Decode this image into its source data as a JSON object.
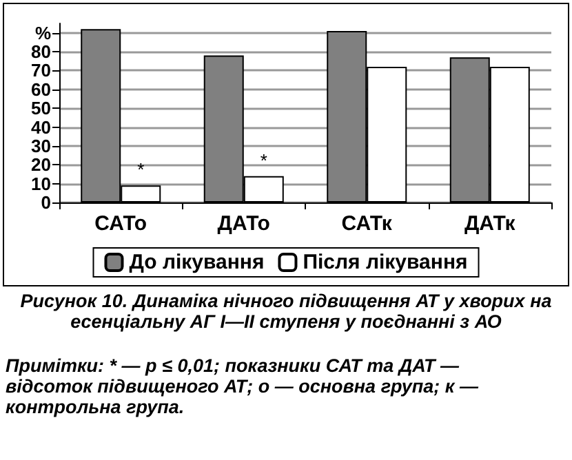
{
  "chart_data": {
    "type": "bar",
    "title": "Рисунок 10. Динаміка нічного підвищення АТ у хворих на есенціальну АГ I—II ступеня у поєднанні з АО",
    "categories": [
      "САТо",
      "ДАТо",
      "САТк",
      "ДАТк"
    ],
    "series": [
      {
        "name": "До лікування",
        "color": "#808080",
        "values": [
          92,
          78,
          91,
          77
        ]
      },
      {
        "name": "Після лікування",
        "color": "#ffffff",
        "values": [
          9,
          14,
          72,
          72
        ]
      }
    ],
    "ylim": [
      0,
      95
    ],
    "yticks": [
      0,
      10,
      20,
      30,
      40,
      50,
      60,
      70,
      80,
      {
        "value": 90,
        "label": "%"
      }
    ],
    "grid": "y",
    "legend": "bottom",
    "annotations": [
      {
        "text": "*",
        "x": "САТо",
        "y": 9
      },
      {
        "text": "*",
        "x": "ДАТо",
        "y": 14
      },
      "Примітки: * — p ≤ 0,01; показники САТ та ДАТ — відсоток підвищеного АТ; о — основна група; к — контрольна група."
    ]
  }
}
